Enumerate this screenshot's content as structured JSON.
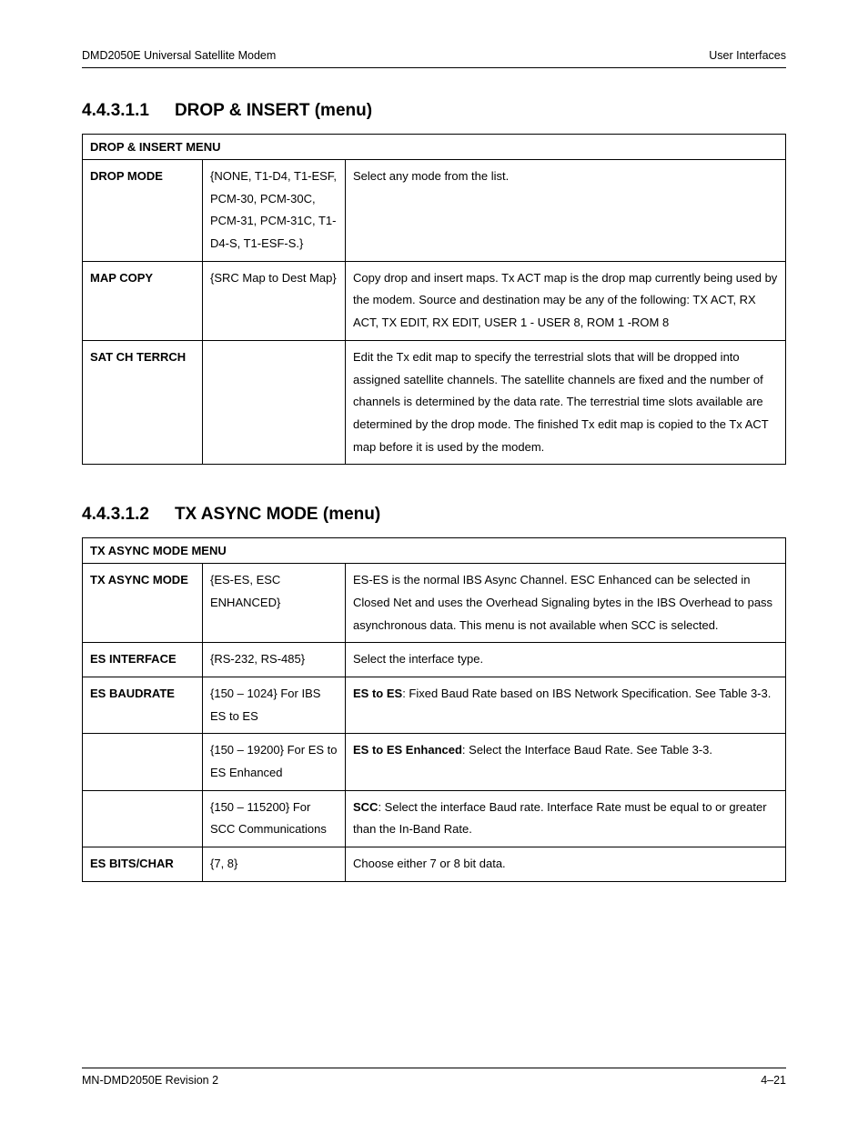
{
  "header": {
    "left": "DMD2050E Universal Satellite Modem",
    "right": "User Interfaces"
  },
  "section1": {
    "number": "4.4.3.1.1",
    "title": "DROP & INSERT (menu)",
    "table_title": "DROP & INSERT MENU",
    "rows": [
      {
        "name": "DROP MODE",
        "opts": "{NONE, T1-D4, T1-ESF, PCM-30, PCM-30C, PCM-31, PCM-31C, T1-D4-S, T1-ESF-S.}",
        "desc": "Select any mode from the list."
      },
      {
        "name": "MAP COPY",
        "opts": "{SRC Map to Dest Map}",
        "desc": "Copy drop and insert maps. Tx ACT map is the drop map currently being used by the modem.  Source and destination may be any of the following: TX ACT, RX ACT, TX EDIT, RX EDIT, USER 1 - USER 8, ROM 1 -ROM 8"
      },
      {
        "name": "SAT CH TERRCH",
        "opts": "",
        "desc": "Edit the Tx edit map to specify the terrestrial slots that will be dropped into assigned satellite channels. The satellite channels are fixed and the number of channels is determined by the data rate. The terrestrial time slots available are determined by the drop mode. The finished Tx edit map is copied to the Tx ACT map before it is used by the modem."
      }
    ]
  },
  "section2": {
    "number": "4.4.3.1.2",
    "title": "TX ASYNC MODE (menu)",
    "table_title": "TX ASYNC MODE MENU",
    "rows": [
      {
        "name": "TX ASYNC MODE",
        "opts": "{ES-ES, ESC ENHANCED}",
        "desc": "ES-ES is the normal IBS Async Channel.  ESC Enhanced can be selected in Closed Net and uses the Overhead Signaling bytes in the IBS Overhead to pass asynchronous data.  This menu is not available when SCC is selected."
      },
      {
        "name": "ES INTERFACE",
        "opts": "{RS-232, RS-485}",
        "desc": "Select the interface type."
      },
      {
        "name": "ES BAUDRATE",
        "opts": "{150 – 1024} For IBS ES to ES",
        "desc_bold": "ES to ES",
        "desc_rest": ":  Fixed Baud Rate based on IBS Network Specification.  See Table 3-3."
      },
      {
        "name": "",
        "opts": "{150 – 19200} For ES to ES Enhanced",
        "desc_bold": "ES to ES Enhanced",
        "desc_rest": ":  Select the Interface Baud Rate.  See Table 3-3."
      },
      {
        "name": "",
        "opts": "{150 – 115200} For SCC Communications",
        "desc_bold": "SCC",
        "desc_rest": ":  Select the interface Baud rate.  Interface Rate must be equal to or greater than the In-Band Rate."
      },
      {
        "name": "ES BITS/CHAR",
        "opts": "{7, 8}",
        "desc": "Choose either 7 or 8 bit data."
      }
    ]
  },
  "footer": {
    "left": "MN-DMD2050E   Revision 2",
    "right": "4–21"
  }
}
